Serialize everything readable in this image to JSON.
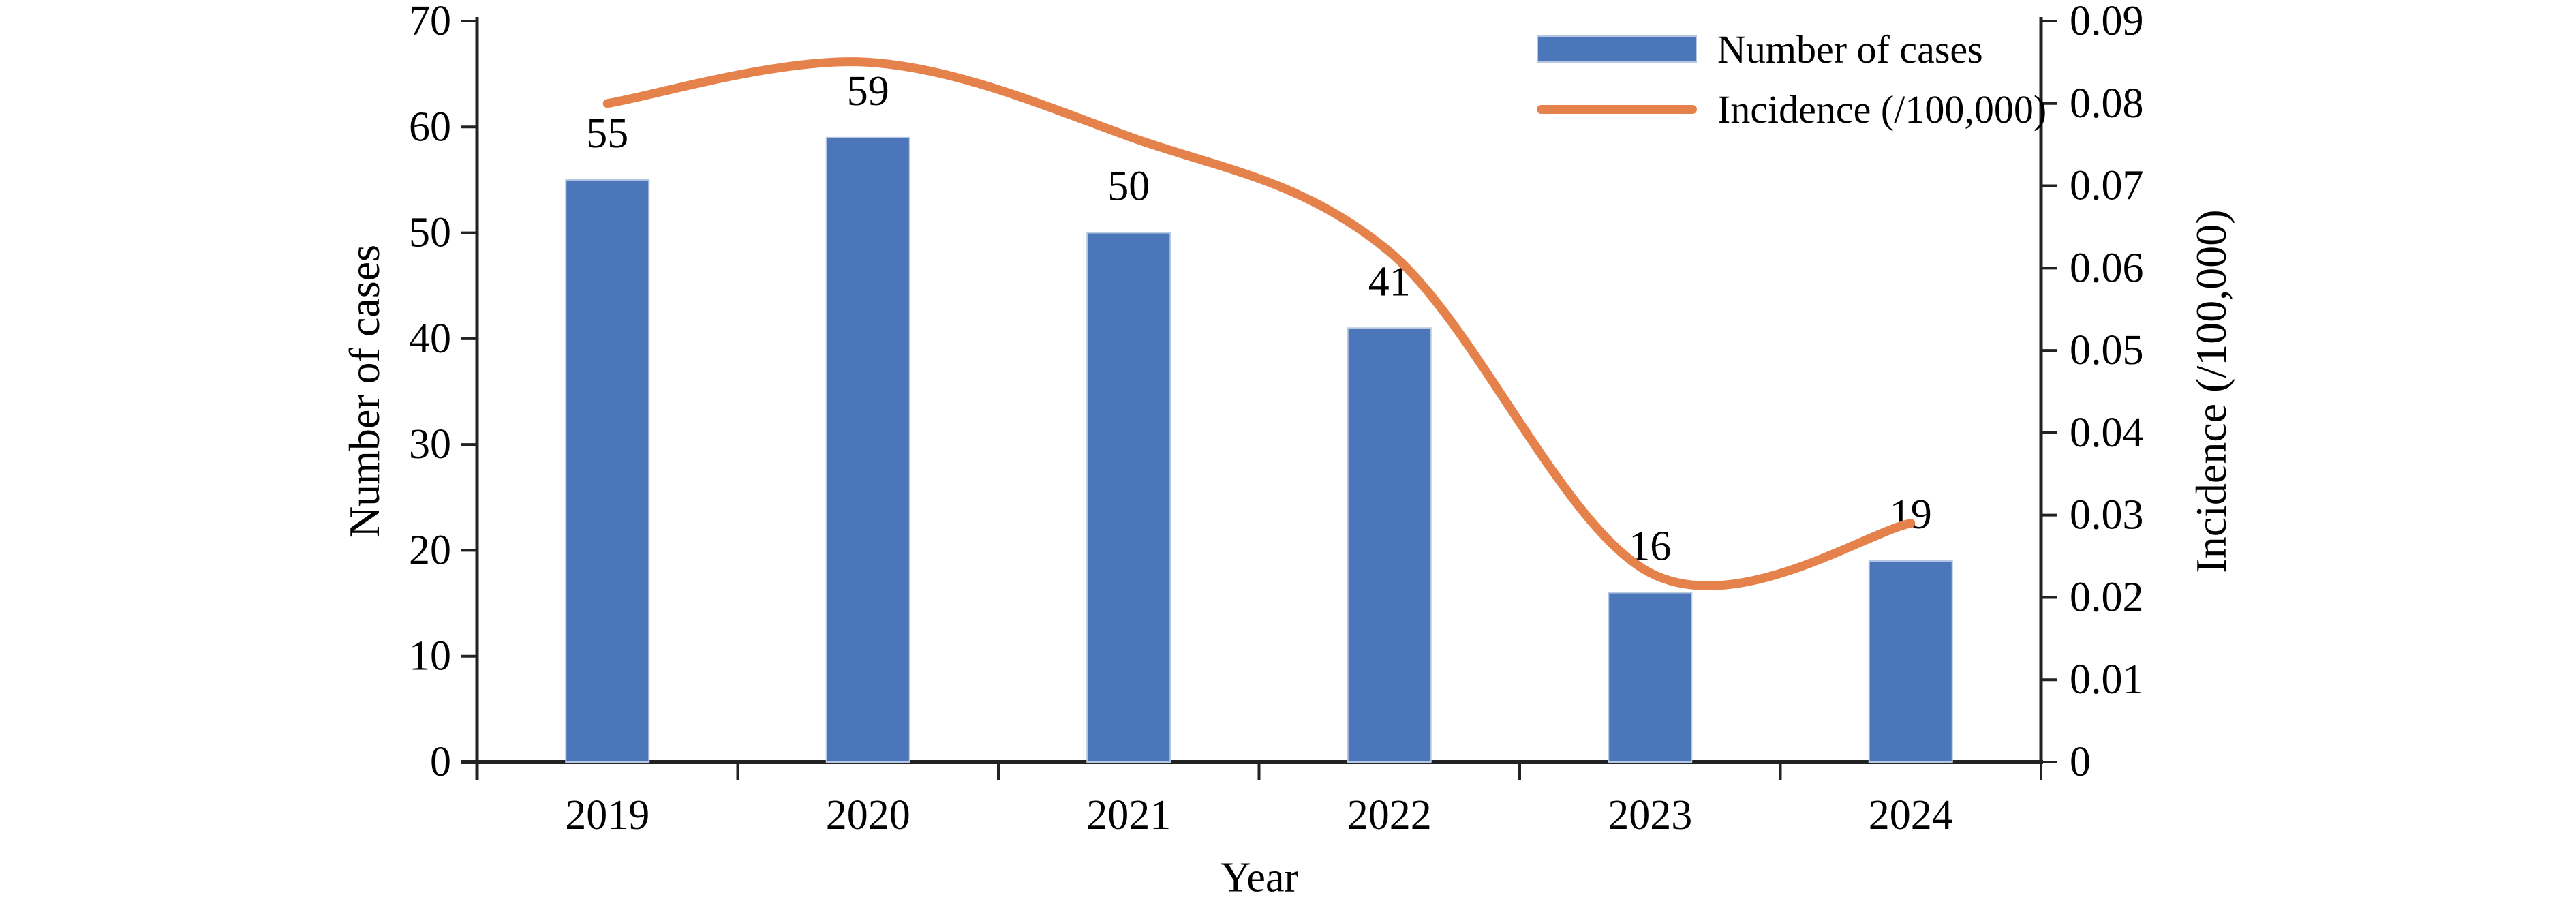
{
  "chart_data": {
    "type": "bar+line",
    "categories": [
      "2019",
      "2020",
      "2021",
      "2022",
      "2023",
      "2024"
    ],
    "series": [
      {
        "name": "Number of cases",
        "type": "bar",
        "axis": "left",
        "values": [
          55,
          59,
          50,
          41,
          16,
          19
        ],
        "labels": [
          "55",
          "59",
          "50",
          "41",
          "16",
          "19"
        ]
      },
      {
        "name": "Incidence (/100,000)",
        "type": "line",
        "axis": "right",
        "values": [
          0.08,
          0.085,
          0.076,
          0.062,
          0.023,
          0.029
        ]
      }
    ],
    "xlabel": "Year",
    "ylabel_left": "Number of cases",
    "ylabel_right": "Incidence (/100,000)",
    "ylim_left": [
      0,
      70
    ],
    "left_ticks": [
      "0",
      "10",
      "20",
      "30",
      "40",
      "50",
      "60",
      "70"
    ],
    "ylim_right": [
      0,
      0.09
    ],
    "right_ticks": [
      "0",
      "0.01",
      "0.02",
      "0.03",
      "0.04",
      "0.05",
      "0.06",
      "0.07",
      "0.08",
      "0.09"
    ],
    "grid": false,
    "legend_position": "top-right",
    "colors": {
      "bar": "#4B76B9",
      "bar_border": "#B7C6E2",
      "line": "#E5824C",
      "axis": "#222222",
      "text": "#000000"
    }
  }
}
